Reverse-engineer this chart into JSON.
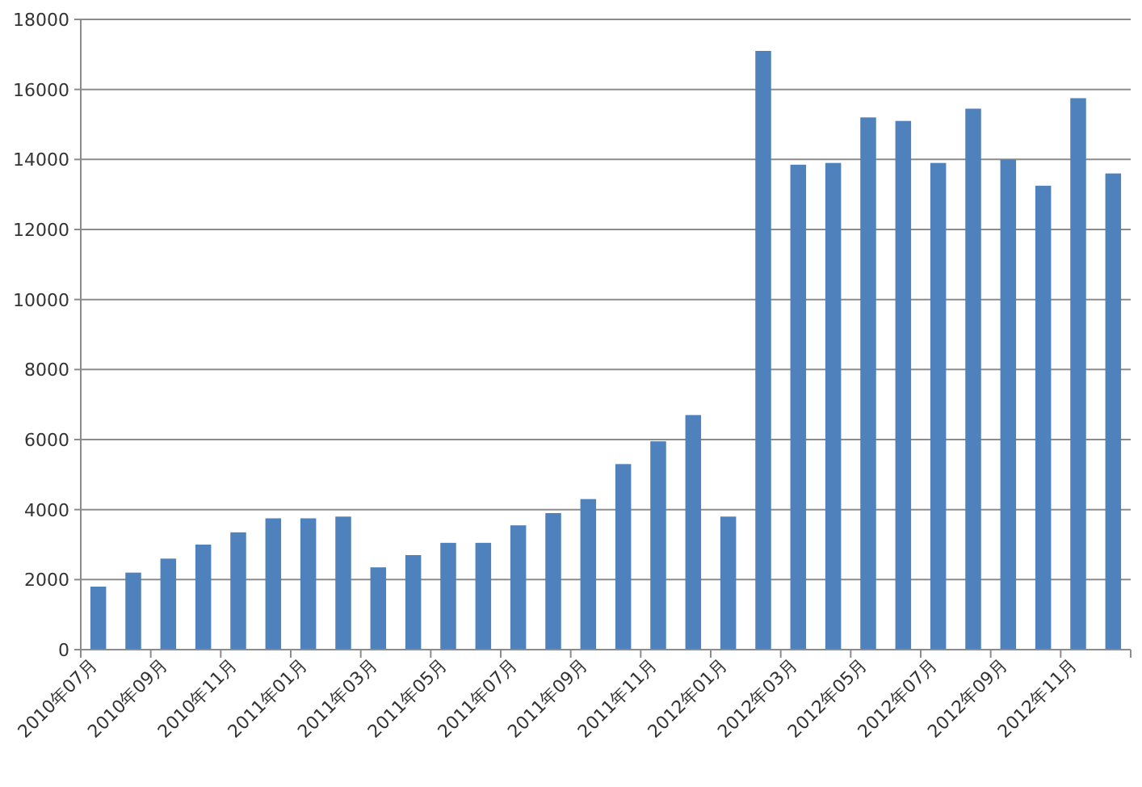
{
  "chart_data": {
    "type": "bar",
    "categories": [
      "2010年07月",
      null,
      "2010年09月",
      null,
      "2010年11月",
      null,
      "2011年01月",
      null,
      "2011年03月",
      null,
      "2011年05月",
      null,
      "2011年07月",
      null,
      "2011年09月",
      null,
      "2011年11月",
      null,
      "2012年01月",
      null,
      "2012年03月",
      null,
      "2012年05月",
      null,
      "2012年07月",
      null,
      "2012年09月",
      null,
      "2012年11月",
      null
    ],
    "values": [
      1800,
      2200,
      2600,
      3000,
      3350,
      3750,
      3750,
      3800,
      2350,
      2700,
      3050,
      3050,
      3550,
      3900,
      4300,
      5300,
      5950,
      6700,
      3800,
      17100,
      13850,
      13900,
      15200,
      15100,
      13900,
      15450,
      14000,
      13250,
      15750,
      13600
    ],
    "color": "#4f81bd",
    "ylim": [
      0,
      18000
    ],
    "yticks": [
      0,
      2000,
      4000,
      6000,
      8000,
      10000,
      12000,
      14000,
      16000,
      18000
    ],
    "grid": "y"
  }
}
